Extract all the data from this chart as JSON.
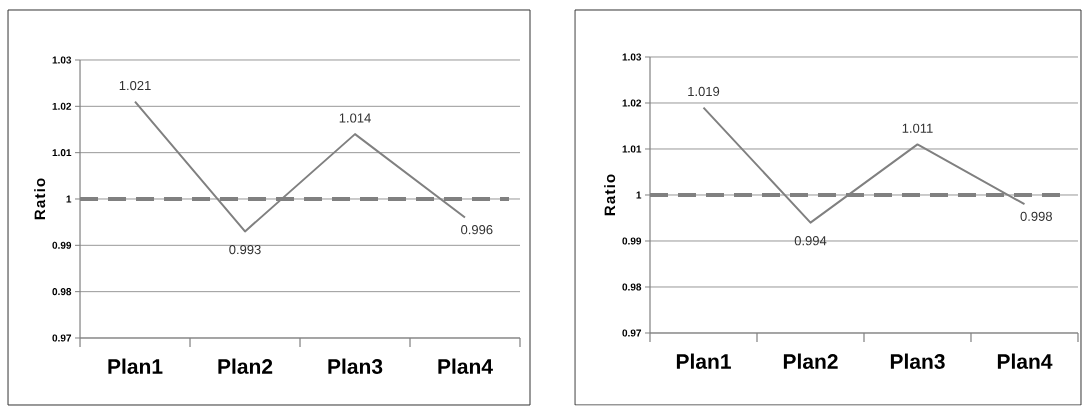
{
  "chart_data": [
    {
      "type": "line",
      "ylabel": "Ratio",
      "categories": [
        "Plan1",
        "Plan2",
        "Plan3",
        "Plan4"
      ],
      "series": [
        {
          "color": "#808080",
          "values": [
            1.021,
            0.993,
            1.014,
            0.996
          ]
        }
      ],
      "ylim": [
        0.97,
        1.03
      ],
      "yticks": [
        0.97,
        0.98,
        0.99,
        1,
        1.01,
        1.02,
        1.03
      ],
      "grid": "y",
      "data_labels": true,
      "ref_lines": [
        {
          "axis": "y",
          "value": 1,
          "color": "#808080",
          "line_style": "dashed"
        }
      ]
    },
    {
      "type": "line",
      "ylabel": "Ratio",
      "categories": [
        "Plan1",
        "Plan2",
        "Plan3",
        "Plan4"
      ],
      "series": [
        {
          "color": "#808080",
          "values": [
            1.019,
            0.994,
            1.011,
            0.998
          ]
        }
      ],
      "ylim": [
        0.97,
        1.03
      ],
      "yticks": [
        0.97,
        0.98,
        0.99,
        1,
        1.01,
        1.02,
        1.03
      ],
      "grid": "y",
      "data_labels": true,
      "ref_lines": [
        {
          "axis": "y",
          "value": 1,
          "color": "#808080",
          "line_style": "dashed"
        }
      ]
    }
  ]
}
